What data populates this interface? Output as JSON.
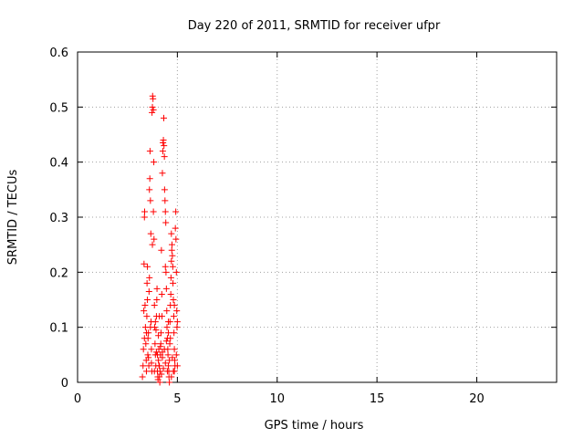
{
  "chart_data": {
    "type": "scatter",
    "title": "Day 220 of 2011, SRMTID for receiver ufpr",
    "xlabel": "GPS time / hours",
    "ylabel": "SRMTID / TECUs",
    "xlim": [
      0,
      24
    ],
    "ylim": [
      0,
      0.6
    ],
    "xticks": [
      0,
      5,
      10,
      15,
      20
    ],
    "xtick_labels": [
      "0",
      "5",
      "10",
      "15",
      "20"
    ],
    "yticks": [
      0,
      0.1,
      0.2,
      0.3,
      0.4,
      0.5,
      0.6
    ],
    "ytick_labels": [
      "0",
      "0.1",
      "0.2",
      "0.3",
      "0.4",
      "0.5",
      "0.6"
    ],
    "grid": true,
    "marker": "+",
    "series": [
      {
        "name": "SRMTID",
        "color": "#ff0000",
        "points": [
          [
            3.25,
            0.01
          ],
          [
            3.28,
            0.03
          ],
          [
            3.3,
            0.06
          ],
          [
            3.32,
            0.13
          ],
          [
            3.33,
            0.215
          ],
          [
            3.35,
            0.3
          ],
          [
            3.36,
            0.31
          ],
          [
            3.38,
            0.14
          ],
          [
            3.4,
            0.1
          ],
          [
            3.42,
            0.07
          ],
          [
            3.44,
            0.04
          ],
          [
            3.45,
            0.02
          ],
          [
            3.47,
            0.12
          ],
          [
            3.48,
            0.18
          ],
          [
            3.5,
            0.21
          ],
          [
            3.52,
            0.05
          ],
          [
            3.53,
            0.08
          ],
          [
            3.55,
            0.09
          ],
          [
            3.57,
            0.03
          ],
          [
            3.58,
            0.165
          ],
          [
            3.6,
            0.35
          ],
          [
            3.62,
            0.37
          ],
          [
            3.63,
            0.42
          ],
          [
            3.65,
            0.33
          ],
          [
            3.67,
            0.27
          ],
          [
            3.68,
            0.11
          ],
          [
            3.7,
            0.06
          ],
          [
            3.72,
            0.02
          ],
          [
            3.73,
            0.49
          ],
          [
            3.75,
            0.5
          ],
          [
            3.76,
            0.52
          ],
          [
            3.78,
            0.515
          ],
          [
            3.8,
            0.495
          ],
          [
            3.82,
            0.4
          ],
          [
            3.83,
            0.26
          ],
          [
            3.85,
            0.14
          ],
          [
            3.86,
            0.1
          ],
          [
            3.88,
            0.07
          ],
          [
            3.9,
            0.05
          ],
          [
            3.92,
            0.03
          ],
          [
            3.93,
            0.095
          ],
          [
            3.95,
            0.12
          ],
          [
            3.97,
            0.15
          ],
          [
            3.98,
            0.17
          ],
          [
            4.0,
            0.02
          ],
          [
            4.02,
            0.01
          ],
          [
            4.03,
            0.005
          ],
          [
            4.05,
            0.04
          ],
          [
            4.07,
            0.06
          ],
          [
            4.08,
            0.03
          ],
          [
            4.1,
            0.01
          ],
          [
            4.12,
            0.0
          ],
          [
            4.13,
            0.02
          ],
          [
            4.15,
            0.05
          ],
          [
            4.17,
            0.07
          ],
          [
            4.18,
            0.09
          ],
          [
            4.2,
            0.24
          ],
          [
            4.22,
            0.16
          ],
          [
            4.23,
            0.12
          ],
          [
            4.25,
            0.38
          ],
          [
            4.27,
            0.42
          ],
          [
            4.28,
            0.435
          ],
          [
            4.3,
            0.44
          ],
          [
            4.32,
            0.48
          ],
          [
            4.33,
            0.43
          ],
          [
            4.35,
            0.41
          ],
          [
            4.36,
            0.35
          ],
          [
            4.38,
            0.33
          ],
          [
            4.4,
            0.31
          ],
          [
            4.42,
            0.29
          ],
          [
            4.43,
            0.2
          ],
          [
            4.45,
            0.17
          ],
          [
            4.47,
            0.13
          ],
          [
            4.48,
            0.1
          ],
          [
            4.5,
            0.08
          ],
          [
            4.52,
            0.06
          ],
          [
            4.53,
            0.05
          ],
          [
            4.55,
            0.03
          ],
          [
            4.57,
            0.02
          ],
          [
            4.58,
            0.01
          ],
          [
            4.6,
            0.04
          ],
          [
            4.62,
            0.07
          ],
          [
            4.63,
            0.11
          ],
          [
            4.65,
            0.14
          ],
          [
            4.67,
            0.16
          ],
          [
            4.68,
            0.19
          ],
          [
            4.7,
            0.22
          ],
          [
            4.72,
            0.24
          ],
          [
            4.73,
            0.25
          ],
          [
            4.75,
            0.23
          ],
          [
            4.77,
            0.21
          ],
          [
            4.78,
            0.18
          ],
          [
            4.8,
            0.15
          ],
          [
            4.82,
            0.12
          ],
          [
            4.83,
            0.09
          ],
          [
            4.85,
            0.06
          ],
          [
            4.87,
            0.04
          ],
          [
            4.88,
            0.03
          ],
          [
            4.9,
            0.28
          ],
          [
            4.92,
            0.31
          ],
          [
            4.93,
            0.26
          ],
          [
            4.95,
            0.2
          ],
          [
            4.97,
            0.13
          ],
          [
            4.98,
            0.1
          ],
          [
            5.0,
            0.03
          ],
          [
            3.45,
            0.09
          ],
          [
            3.6,
            0.19
          ],
          [
            3.75,
            0.25
          ],
          [
            3.9,
            0.11
          ],
          [
            4.05,
            0.085
          ],
          [
            4.15,
            0.065
          ],
          [
            4.25,
            0.055
          ],
          [
            4.35,
            0.06
          ],
          [
            4.45,
            0.075
          ],
          [
            4.55,
            0.09
          ],
          [
            4.65,
            0.08
          ],
          [
            4.75,
            0.045
          ],
          [
            4.85,
            0.02
          ],
          [
            4.95,
            0.05
          ],
          [
            3.55,
            0.045
          ],
          [
            3.7,
            0.035
          ],
          [
            3.85,
            0.02
          ],
          [
            4.0,
            0.05
          ],
          [
            4.1,
            0.03
          ],
          [
            4.2,
            0.015
          ],
          [
            4.3,
            0.025
          ],
          [
            4.4,
            0.035
          ],
          [
            4.5,
            0.02
          ],
          [
            4.6,
            0.0
          ],
          [
            4.7,
            0.01
          ],
          [
            4.8,
            0.02
          ],
          [
            3.35,
            0.08
          ],
          [
            3.65,
            0.1
          ],
          [
            3.95,
            0.055
          ],
          [
            4.25,
            0.045
          ],
          [
            4.55,
            0.11
          ],
          [
            4.85,
            0.14
          ],
          [
            3.5,
            0.15
          ],
          [
            3.8,
            0.31
          ],
          [
            4.1,
            0.12
          ],
          [
            4.4,
            0.21
          ],
          [
            4.7,
            0.27
          ],
          [
            5.0,
            0.11
          ]
        ]
      }
    ]
  }
}
